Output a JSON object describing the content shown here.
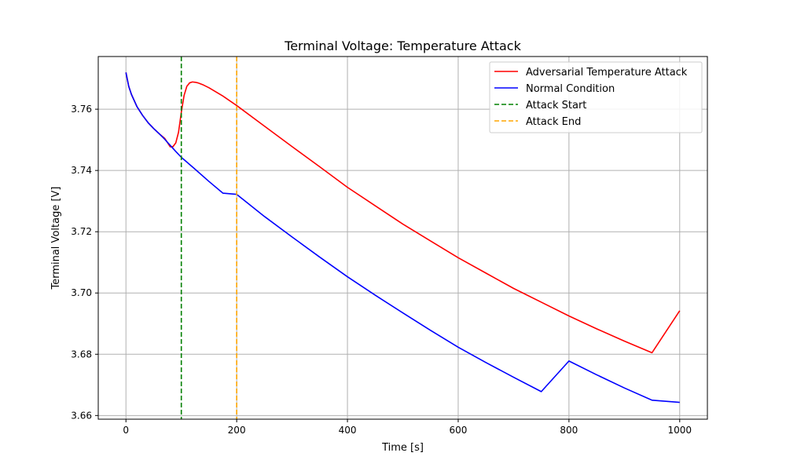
{
  "chart_data": {
    "type": "line",
    "title": "Terminal Voltage: Temperature Attack",
    "xlabel": "Time [s]",
    "ylabel": "Terminal Voltage [V]",
    "xlim": [
      -50,
      1050
    ],
    "ylim": [
      3.6588,
      3.7772
    ],
    "xticks": [
      0,
      200,
      400,
      600,
      800,
      1000
    ],
    "yticks": [
      3.66,
      3.68,
      3.7,
      3.72,
      3.74,
      3.76
    ],
    "xtick_labels": [
      "0",
      "200",
      "400",
      "600",
      "800",
      "1000"
    ],
    "ytick_labels": [
      "3.66",
      "3.68",
      "3.70",
      "3.72",
      "3.74",
      "3.76"
    ],
    "grid": true,
    "legend_position": "top-right",
    "series": [
      {
        "name": "Adversarial Temperature Attack",
        "color": "#ff0000",
        "style": "solid",
        "x": [
          0,
          5,
          10,
          20,
          30,
          40,
          50,
          60,
          70,
          80,
          85,
          90,
          95,
          100,
          105,
          110,
          115,
          120,
          125,
          130,
          140,
          150,
          175,
          200,
          250,
          300,
          350,
          400,
          450,
          500,
          550,
          600,
          650,
          700,
          750,
          800,
          850,
          900,
          950,
          1000
        ],
        "y": [
          3.772,
          3.7675,
          3.7648,
          3.7608,
          3.758,
          3.7556,
          3.7537,
          3.752,
          3.7505,
          3.7477,
          3.7478,
          3.749,
          3.7525,
          3.759,
          3.7645,
          3.7675,
          3.7686,
          3.7689,
          3.7688,
          3.7686,
          3.7679,
          3.767,
          3.7643,
          3.7612,
          3.7545,
          3.7478,
          3.7412,
          3.7345,
          3.7285,
          3.7225,
          3.717,
          3.7115,
          3.7065,
          3.7015,
          3.697,
          3.6925,
          3.6883,
          3.6843,
          3.6805,
          3.6942
        ]
      },
      {
        "name": "Normal Condition",
        "color": "#0000ff",
        "style": "solid",
        "x": [
          0,
          5,
          10,
          20,
          30,
          40,
          50,
          60,
          70,
          80,
          90,
          100,
          125,
          150,
          175,
          200,
          250,
          300,
          350,
          400,
          450,
          500,
          550,
          600,
          650,
          700,
          750,
          800,
          850,
          900,
          950,
          1000
        ],
        "y": [
          3.772,
          3.7675,
          3.7648,
          3.7608,
          3.758,
          3.7556,
          3.7537,
          3.752,
          3.7502,
          3.7482,
          3.7462,
          3.7443,
          3.7404,
          3.7364,
          3.7326,
          3.7322,
          3.725,
          3.7183,
          3.7117,
          3.7053,
          3.6993,
          3.6935,
          3.6878,
          3.6823,
          3.6773,
          3.6725,
          3.6678,
          3.6778,
          3.6733,
          3.669,
          3.665,
          3.6643
        ]
      },
      {
        "name": "Attack Start",
        "color": "#008000",
        "style": "dashed",
        "vline_x": 100
      },
      {
        "name": "Attack End",
        "color": "#ffa500",
        "style": "dashed",
        "vline_x": 200
      }
    ]
  }
}
